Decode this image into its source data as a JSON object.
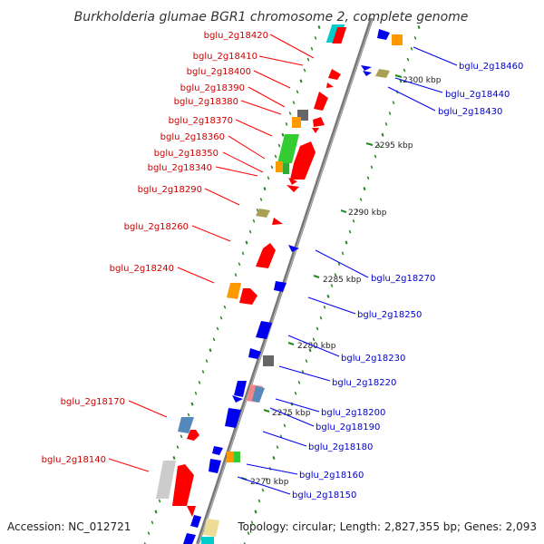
{
  "title": "Burkholderia glumae BGR1 chromosome 2, complete genome",
  "footer": {
    "accession": "Accession: NC_012721",
    "summary": "Topology: circular; Length: 2,827,355 bp; Genes: 2,093"
  },
  "scale_labels": [
    "2300 kbp",
    "2295 kbp",
    "2290 kbp",
    "2285 kbp",
    "2280 kbp",
    "2275 kbp",
    "2270 kbp"
  ],
  "left_labels": [
    "bglu_2g18420",
    "bglu_2g18410",
    "bglu_2g18400",
    "bglu_2g18390",
    "bglu_2g18380",
    "bglu_2g18370",
    "bglu_2g18360",
    "bglu_2g18350",
    "bglu_2g18340",
    "bglu_2g18290",
    "bglu_2g18260",
    "bglu_2g18240",
    "bglu_2g18170",
    "bglu_2g18140"
  ],
  "right_labels": [
    "bglu_2g18460",
    "bglu_2g18440",
    "bglu_2g18430",
    "bglu_2g18270",
    "bglu_2g18250",
    "bglu_2g18230",
    "bglu_2g18220",
    "bglu_2g18200",
    "bglu_2g18190",
    "bglu_2g18180",
    "bglu_2g18160",
    "bglu_2g18150"
  ],
  "colors": {
    "forward_gene": "#ff0000",
    "reverse_gene": "#0000ee",
    "left_label": "#cc0000",
    "right_label": "#0000cc",
    "backbone": "#888888",
    "gc_ticks": "#228822"
  }
}
